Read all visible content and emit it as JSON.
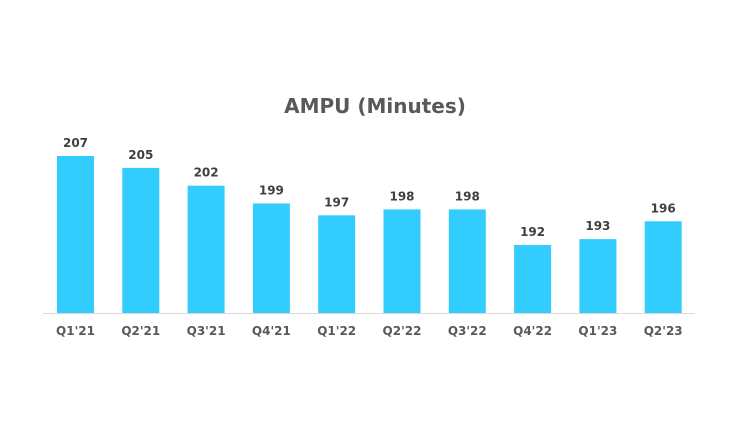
{
  "chart_data": {
    "type": "bar",
    "title": "AMPU (Minutes)",
    "categories": [
      "Q1'21",
      "Q2'21",
      "Q3'21",
      "Q4'21",
      "Q1'22",
      "Q2'22",
      "Q3'22",
      "Q4'22",
      "Q1'23",
      "Q2'23"
    ],
    "values": [
      207,
      205,
      202,
      199,
      197,
      198,
      198,
      192,
      193,
      196
    ],
    "data_labels": true,
    "xlabel": "",
    "ylabel": "",
    "y_axis_visible": false,
    "grid": false,
    "legend": "none",
    "bar_color": "#33CCFF",
    "axis_color": "#D9D9D9"
  }
}
